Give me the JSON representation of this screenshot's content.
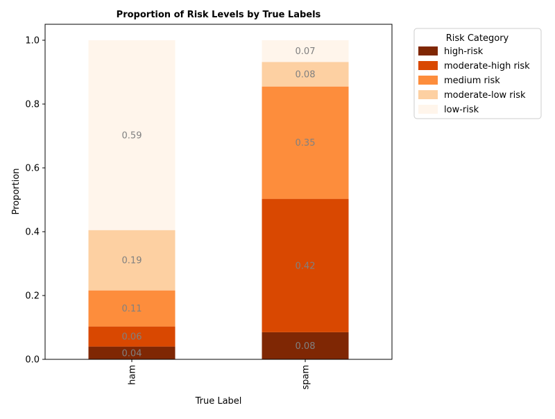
{
  "chart_data": {
    "type": "bar",
    "stacked": true,
    "title": "Proportion of Risk Levels by True Labels",
    "xlabel": "True Label",
    "ylabel": "Proportion",
    "categories": [
      "ham",
      "spam"
    ],
    "ylim": [
      0,
      1.05
    ],
    "yticks": [
      "0.0",
      "0.2",
      "0.4",
      "0.6",
      "0.8",
      "1.0"
    ],
    "ytick_values": [
      0,
      0.2,
      0.4,
      0.6,
      0.8,
      1.0
    ],
    "grid": false,
    "legend": {
      "title": "Risk Category",
      "placement": "outside upper right"
    },
    "series": [
      {
        "name": "high-risk",
        "color": "#7f2704",
        "values": [
          0.04,
          0.085
        ],
        "labels": [
          "0.04",
          "0.08"
        ]
      },
      {
        "name": "moderate-high risk",
        "color": "#d94801",
        "values": [
          0.063,
          0.418
        ],
        "labels": [
          "0.06",
          "0.42"
        ]
      },
      {
        "name": "medium risk",
        "color": "#fd8d3c",
        "values": [
          0.113,
          0.352
        ],
        "labels": [
          "0.11",
          "0.35"
        ]
      },
      {
        "name": "moderate-low risk",
        "color": "#fdd0a2",
        "values": [
          0.189,
          0.077
        ],
        "labels": [
          "0.19",
          "0.08"
        ]
      },
      {
        "name": "low-risk",
        "color": "#fff5eb",
        "values": [
          0.595,
          0.068
        ],
        "labels": [
          "0.59",
          "0.07"
        ]
      }
    ],
    "label_color": "#808080"
  }
}
